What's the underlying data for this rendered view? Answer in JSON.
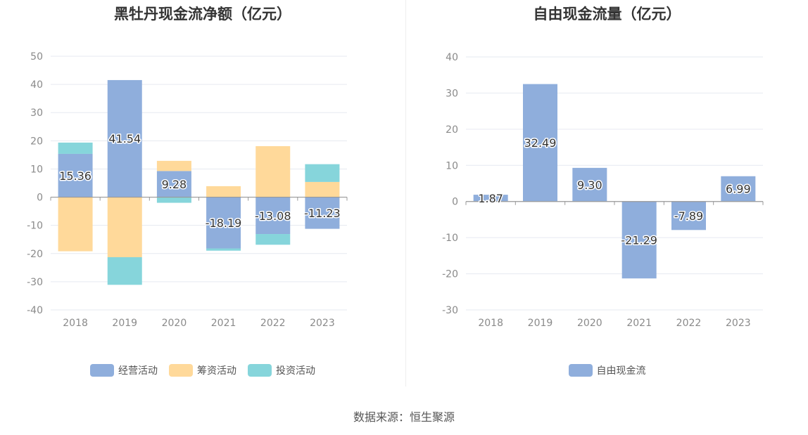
{
  "chart_data": [
    {
      "type": "bar",
      "stacked": true,
      "title": "黑牡丹现金流净额（亿元）",
      "categories": [
        "2018",
        "2019",
        "2020",
        "2021",
        "2022",
        "2023"
      ],
      "ylim": [
        -40,
        50
      ],
      "yticks": [
        -40,
        -30,
        -20,
        -10,
        0,
        10,
        20,
        30,
        40,
        50
      ],
      "grid": true,
      "legend_position": "bottom",
      "series": [
        {
          "name": "经营活动",
          "color": "#8faedc",
          "values": [
            15.36,
            41.54,
            9.28,
            -18.19,
            -13.08,
            -11.23
          ]
        },
        {
          "name": "筹资活动",
          "color": "#ffd99a",
          "values": [
            -19.2,
            -21.3,
            3.6,
            3.9,
            18.1,
            5.4
          ]
        },
        {
          "name": "投资活动",
          "color": "#86d5db",
          "values": [
            4.0,
            -9.8,
            -2.0,
            -0.8,
            -3.8,
            6.3
          ]
        }
      ],
      "labeled_series": 0,
      "data_labels": [
        "15.36",
        "41.54",
        "9.28",
        "-18.19",
        "-13.08",
        "-11.23"
      ]
    },
    {
      "type": "bar",
      "title": "自由现金流量（亿元）",
      "categories": [
        "2018",
        "2019",
        "2020",
        "2021",
        "2022",
        "2023"
      ],
      "ylim": [
        -30,
        40
      ],
      "yticks": [
        -30,
        -20,
        -10,
        0,
        10,
        20,
        30,
        40
      ],
      "grid": true,
      "legend_position": "bottom",
      "series": [
        {
          "name": "自由现金流",
          "color": "#8faedc",
          "values": [
            1.87,
            32.49,
            9.3,
            -21.29,
            -7.89,
            6.99
          ]
        }
      ],
      "labeled_series": 0,
      "data_labels": [
        "1.87",
        "32.49",
        "9.30",
        "-21.29",
        "-7.89",
        "6.99"
      ]
    }
  ],
  "footer": {
    "source": "数据来源：恒生聚源"
  }
}
